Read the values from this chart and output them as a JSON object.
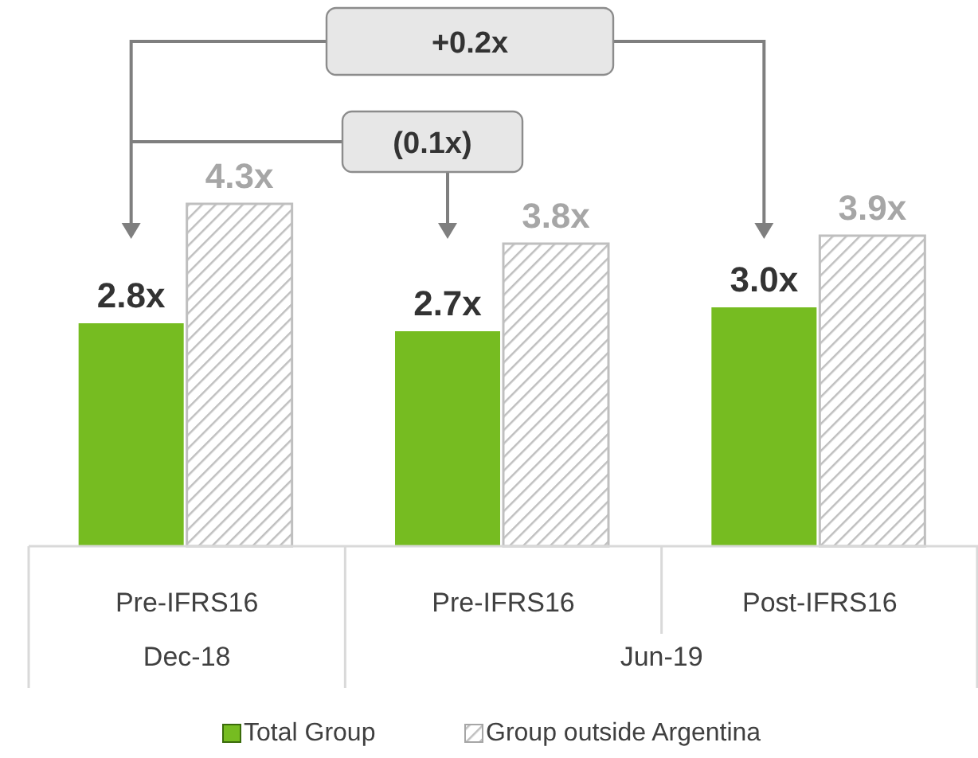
{
  "chart_data": {
    "type": "bar",
    "categories": [
      "Pre-IFRS16",
      "Pre-IFRS16",
      "Post-IFRS16"
    ],
    "series": [
      {
        "name": "Total Group",
        "color": "#76bc21",
        "values": [
          2.8,
          2.7,
          3.0
        ],
        "value_labels": [
          "2.8x",
          "2.7x",
          "3.0x"
        ]
      },
      {
        "name": "Group outside Argentina",
        "color": "#bfbfbf",
        "values": [
          4.3,
          3.8,
          3.9
        ],
        "value_labels": [
          "4.3x",
          "3.8x",
          "3.9x"
        ]
      }
    ],
    "annotations": [
      "+0.2x",
      "(0.1x)",
      "Dec-18",
      "Jun-19"
    ],
    "legend": "bottom"
  }
}
